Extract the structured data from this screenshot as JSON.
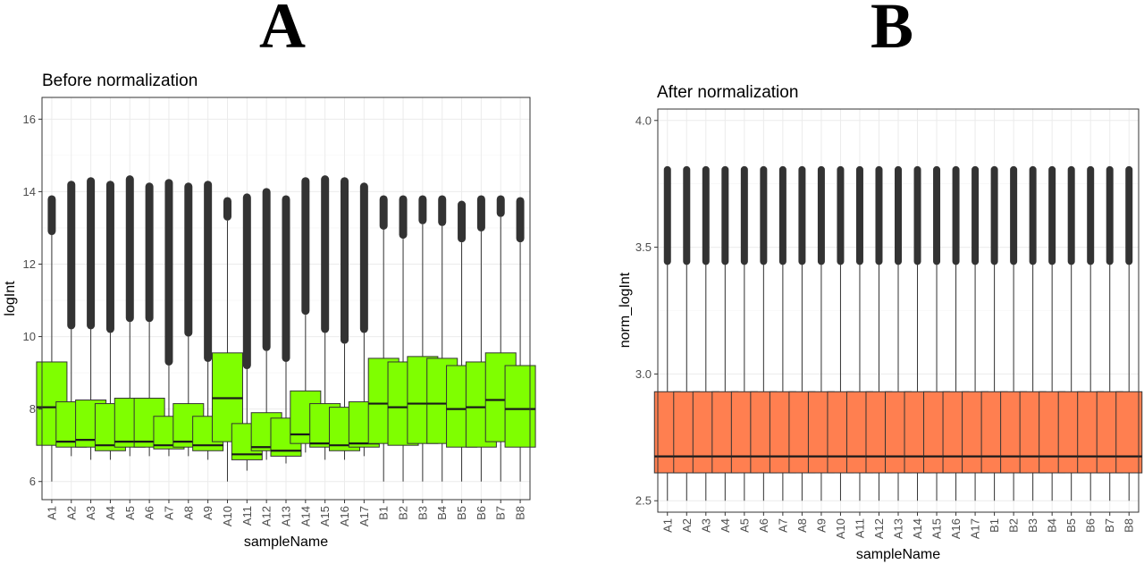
{
  "panels": [
    {
      "letter": "A",
      "chart_data": {
        "type": "boxplot",
        "title": "Before normalization",
        "xlabel": "sampleName",
        "ylabel": "logInt",
        "ylim": [
          5.5,
          16.6
        ],
        "yticks": [
          6,
          8,
          10,
          12,
          14,
          16
        ],
        "grid": true,
        "fill_color": "#7FFF00",
        "categories": [
          "A1",
          "A2",
          "A3",
          "A4",
          "A5",
          "A6",
          "A7",
          "A8",
          "A9",
          "A10",
          "A11",
          "A12",
          "A13",
          "A14",
          "A15",
          "A16",
          "A17",
          "B1",
          "B2",
          "B3",
          "B4",
          "B5",
          "B6",
          "B7",
          "B8"
        ],
        "boxes": [
          {
            "min": 6.0,
            "q1": 7.0,
            "median": 8.05,
            "q3": 9.3,
            "upper": 12.8,
            "max": 13.9
          },
          {
            "min": 6.7,
            "q1": 6.95,
            "median": 7.1,
            "q3": 8.2,
            "upper": 10.2,
            "max": 14.3
          },
          {
            "min": 6.6,
            "q1": 6.95,
            "median": 7.15,
            "q3": 8.25,
            "upper": 10.2,
            "max": 14.4
          },
          {
            "min": 6.6,
            "q1": 6.85,
            "median": 7.0,
            "q3": 8.15,
            "upper": 10.1,
            "max": 14.3
          },
          {
            "min": 6.7,
            "q1": 6.95,
            "median": 7.1,
            "q3": 8.3,
            "upper": 10.4,
            "max": 14.45
          },
          {
            "min": 6.7,
            "q1": 6.95,
            "median": 7.1,
            "q3": 8.3,
            "upper": 10.4,
            "max": 14.25
          },
          {
            "min": 6.7,
            "q1": 6.9,
            "median": 7.0,
            "q3": 7.8,
            "upper": 9.2,
            "max": 14.35
          },
          {
            "min": 6.7,
            "q1": 6.95,
            "median": 7.1,
            "q3": 8.15,
            "upper": 10.0,
            "max": 14.25
          },
          {
            "min": 6.6,
            "q1": 6.85,
            "median": 7.0,
            "q3": 7.8,
            "upper": 9.3,
            "max": 14.3
          },
          {
            "min": 6.0,
            "q1": 7.1,
            "median": 8.3,
            "q3": 9.55,
            "upper": 13.2,
            "max": 13.85
          },
          {
            "min": 6.3,
            "q1": 6.6,
            "median": 6.75,
            "q3": 7.6,
            "upper": 9.1,
            "max": 13.95
          },
          {
            "min": 6.6,
            "q1": 6.85,
            "median": 6.95,
            "q3": 7.9,
            "upper": 9.6,
            "max": 14.1
          },
          {
            "min": 6.5,
            "q1": 6.7,
            "median": 6.85,
            "q3": 7.75,
            "upper": 9.3,
            "max": 13.9
          },
          {
            "min": 6.8,
            "q1": 7.05,
            "median": 7.3,
            "q3": 8.5,
            "upper": 10.6,
            "max": 14.4
          },
          {
            "min": 6.6,
            "q1": 6.95,
            "median": 7.05,
            "q3": 8.15,
            "upper": 10.1,
            "max": 14.45
          },
          {
            "min": 6.6,
            "q1": 6.85,
            "median": 7.0,
            "q3": 8.05,
            "upper": 9.8,
            "max": 14.4
          },
          {
            "min": 6.7,
            "q1": 6.95,
            "median": 7.05,
            "q3": 8.2,
            "upper": 10.1,
            "max": 14.25
          },
          {
            "min": 6.0,
            "q1": 7.05,
            "median": 8.15,
            "q3": 9.4,
            "upper": 12.95,
            "max": 13.9
          },
          {
            "min": 6.0,
            "q1": 7.0,
            "median": 8.05,
            "q3": 9.3,
            "upper": 12.7,
            "max": 13.9
          },
          {
            "min": 6.0,
            "q1": 7.05,
            "median": 8.15,
            "q3": 9.45,
            "upper": 13.1,
            "max": 13.9
          },
          {
            "min": 6.0,
            "q1": 7.05,
            "median": 8.15,
            "q3": 9.4,
            "upper": 13.05,
            "max": 13.9
          },
          {
            "min": 6.0,
            "q1": 6.95,
            "median": 8.0,
            "q3": 9.2,
            "upper": 12.6,
            "max": 13.75
          },
          {
            "min": 6.0,
            "q1": 6.95,
            "median": 8.05,
            "q3": 9.3,
            "upper": 12.9,
            "max": 13.9
          },
          {
            "min": 6.0,
            "q1": 7.1,
            "median": 8.25,
            "q3": 9.55,
            "upper": 13.3,
            "max": 13.9
          },
          {
            "min": 6.0,
            "q1": 6.95,
            "median": 8.0,
            "q3": 9.2,
            "upper": 12.6,
            "max": 13.85
          }
        ]
      }
    },
    {
      "letter": "B",
      "chart_data": {
        "type": "boxplot",
        "title": "After normalization",
        "xlabel": "sampleName",
        "ylabel": "norm_logInt",
        "ylim": [
          2.455,
          4.045
        ],
        "yticks": [
          2.5,
          3.0,
          3.5,
          4.0
        ],
        "grid": true,
        "fill_color": "#FF7F50",
        "categories": [
          "A1",
          "A2",
          "A3",
          "A4",
          "A5",
          "A6",
          "A7",
          "A8",
          "A9",
          "A10",
          "A11",
          "A12",
          "A13",
          "A14",
          "A15",
          "A16",
          "A17",
          "B1",
          "B2",
          "B3",
          "B4",
          "B5",
          "B6",
          "B7",
          "B8"
        ],
        "box": {
          "min": 2.5,
          "q1": 2.61,
          "median": 2.675,
          "q3": 2.93,
          "upper": 3.43,
          "max": 3.82
        }
      }
    }
  ]
}
